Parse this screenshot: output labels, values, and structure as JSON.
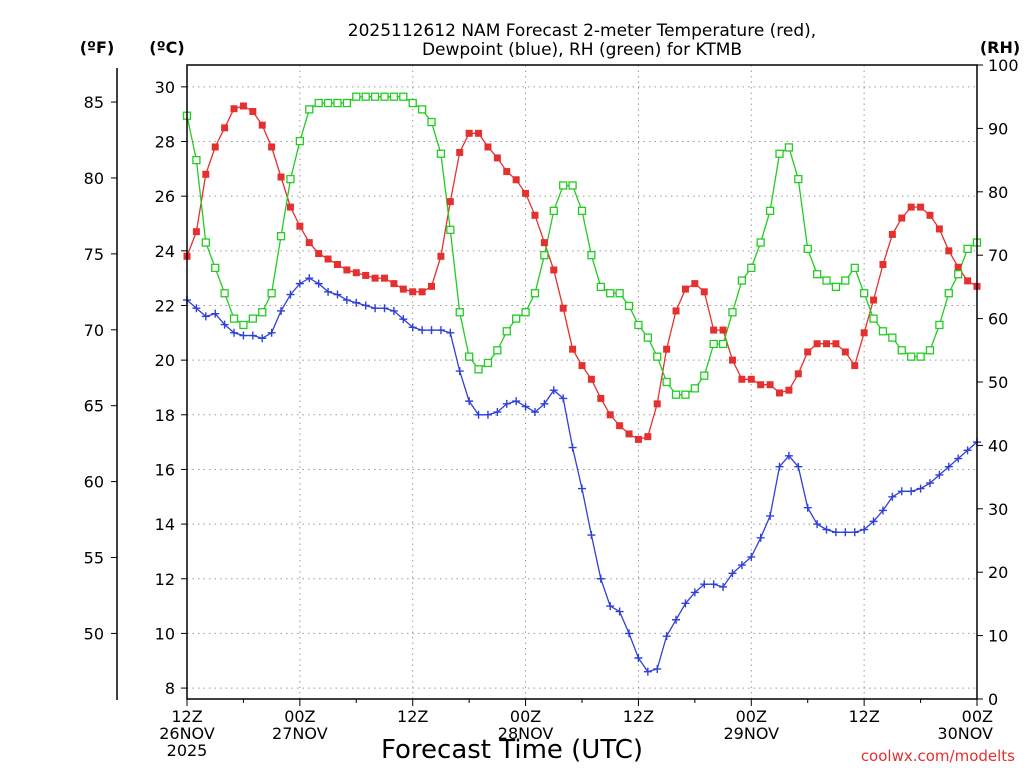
{
  "chart_data": {
    "type": "line",
    "title_line1": "2025112612 NAM Forecast 2-meter Temperature (red),",
    "title_line2": "Dewpoint (blue), RH (green) for KTMB",
    "xlabel": "Forecast Time (UTC)",
    "credit": "coolwx.com/modelts",
    "unit_f": "(ºF)",
    "unit_c": "(ºC)",
    "unit_rh": "(RH)",
    "x_hours_range": [
      0,
      84
    ],
    "celsius_range": [
      7.6,
      30.8
    ],
    "rh_range": [
      0,
      100
    ],
    "celsius_ticks": [
      8,
      10,
      12,
      14,
      16,
      18,
      20,
      22,
      24,
      26,
      28,
      30
    ],
    "fahrenheit_ticks": [
      50,
      55,
      60,
      65,
      70,
      75,
      80,
      85
    ],
    "rh_ticks": [
      0,
      10,
      20,
      30,
      40,
      50,
      60,
      70,
      80,
      90,
      100
    ],
    "x_ticks": [
      {
        "hour": 0,
        "lines": [
          "12Z",
          "26NOV",
          "2025"
        ]
      },
      {
        "hour": 12,
        "lines": [
          "00Z",
          "27NOV"
        ]
      },
      {
        "hour": 24,
        "lines": [
          "12Z"
        ]
      },
      {
        "hour": 36,
        "lines": [
          "00Z",
          "28NOV"
        ]
      },
      {
        "hour": 48,
        "lines": [
          "12Z"
        ]
      },
      {
        "hour": 60,
        "lines": [
          "00Z",
          "29NOV"
        ]
      },
      {
        "hour": 72,
        "lines": [
          "12Z"
        ]
      },
      {
        "hour": 84,
        "lines": [
          "00Z",
          "30NOV"
        ]
      }
    ],
    "series": [
      {
        "name": "Temperature",
        "color": "#e53030",
        "marker": "filled-square",
        "axis": "celsius",
        "values": [
          23.8,
          24.7,
          26.8,
          27.8,
          28.5,
          29.2,
          29.3,
          29.1,
          28.6,
          27.8,
          26.7,
          25.6,
          24.9,
          24.3,
          23.9,
          23.7,
          23.5,
          23.3,
          23.2,
          23.1,
          23.0,
          23.0,
          22.8,
          22.6,
          22.5,
          22.5,
          22.7,
          23.8,
          25.8,
          27.6,
          28.3,
          28.3,
          27.8,
          27.4,
          26.9,
          26.6,
          26.1,
          25.3,
          24.3,
          23.3,
          21.9,
          20.4,
          19.8,
          19.3,
          18.6,
          18.0,
          17.6,
          17.3,
          17.1,
          17.2,
          18.4,
          20.4,
          21.8,
          22.6,
          22.8,
          22.5,
          21.1,
          21.1,
          20.0,
          19.3,
          19.3,
          19.1,
          19.1,
          18.8,
          18.9,
          19.5,
          20.3,
          20.6,
          20.6,
          20.6,
          20.3,
          19.8,
          21.0,
          22.2,
          23.5,
          24.6,
          25.2,
          25.6,
          25.6,
          25.3,
          24.8,
          24.0,
          23.4,
          22.9,
          22.7
        ]
      },
      {
        "name": "Dewpoint",
        "color": "#2f40d6",
        "marker": "plus",
        "axis": "celsius",
        "values": [
          22.2,
          21.9,
          21.6,
          21.7,
          21.3,
          21.0,
          20.9,
          20.9,
          20.8,
          21.0,
          21.8,
          22.4,
          22.8,
          23.0,
          22.8,
          22.5,
          22.4,
          22.2,
          22.1,
          22.0,
          21.9,
          21.9,
          21.8,
          21.5,
          21.2,
          21.1,
          21.1,
          21.1,
          21.0,
          19.6,
          18.5,
          18.0,
          18.0,
          18.1,
          18.4,
          18.5,
          18.3,
          18.1,
          18.4,
          18.9,
          18.6,
          16.8,
          15.3,
          13.6,
          12.0,
          11.0,
          10.8,
          10.0,
          9.1,
          8.6,
          8.7,
          9.9,
          10.5,
          11.1,
          11.5,
          11.8,
          11.8,
          11.7,
          12.2,
          12.5,
          12.8,
          13.5,
          14.3,
          16.1,
          16.5,
          16.1,
          14.6,
          14.0,
          13.8,
          13.7,
          13.7,
          13.7,
          13.8,
          14.1,
          14.5,
          15.0,
          15.2,
          15.2,
          15.3,
          15.5,
          15.8,
          16.1,
          16.4,
          16.7,
          17.0
        ]
      },
      {
        "name": "RH",
        "color": "#22cc22",
        "marker": "open-square",
        "axis": "rh",
        "values": [
          92,
          85,
          72,
          68,
          64,
          60,
          59,
          60,
          61,
          64,
          73,
          82,
          88,
          93,
          94,
          94,
          94,
          94,
          95,
          95,
          95,
          95,
          95,
          95,
          94,
          93,
          91,
          86,
          74,
          61,
          54,
          52,
          53,
          55,
          58,
          60,
          61,
          64,
          70,
          77,
          81,
          81,
          77,
          70,
          65,
          64,
          64,
          62,
          59,
          57,
          54,
          50,
          48,
          48,
          49,
          51,
          56,
          56,
          61,
          66,
          68,
          72,
          77,
          86,
          87,
          82,
          71,
          67,
          66,
          65,
          66,
          68,
          64,
          60,
          58,
          57,
          55,
          54,
          54,
          55,
          59,
          64,
          67,
          71,
          72
        ]
      }
    ]
  }
}
